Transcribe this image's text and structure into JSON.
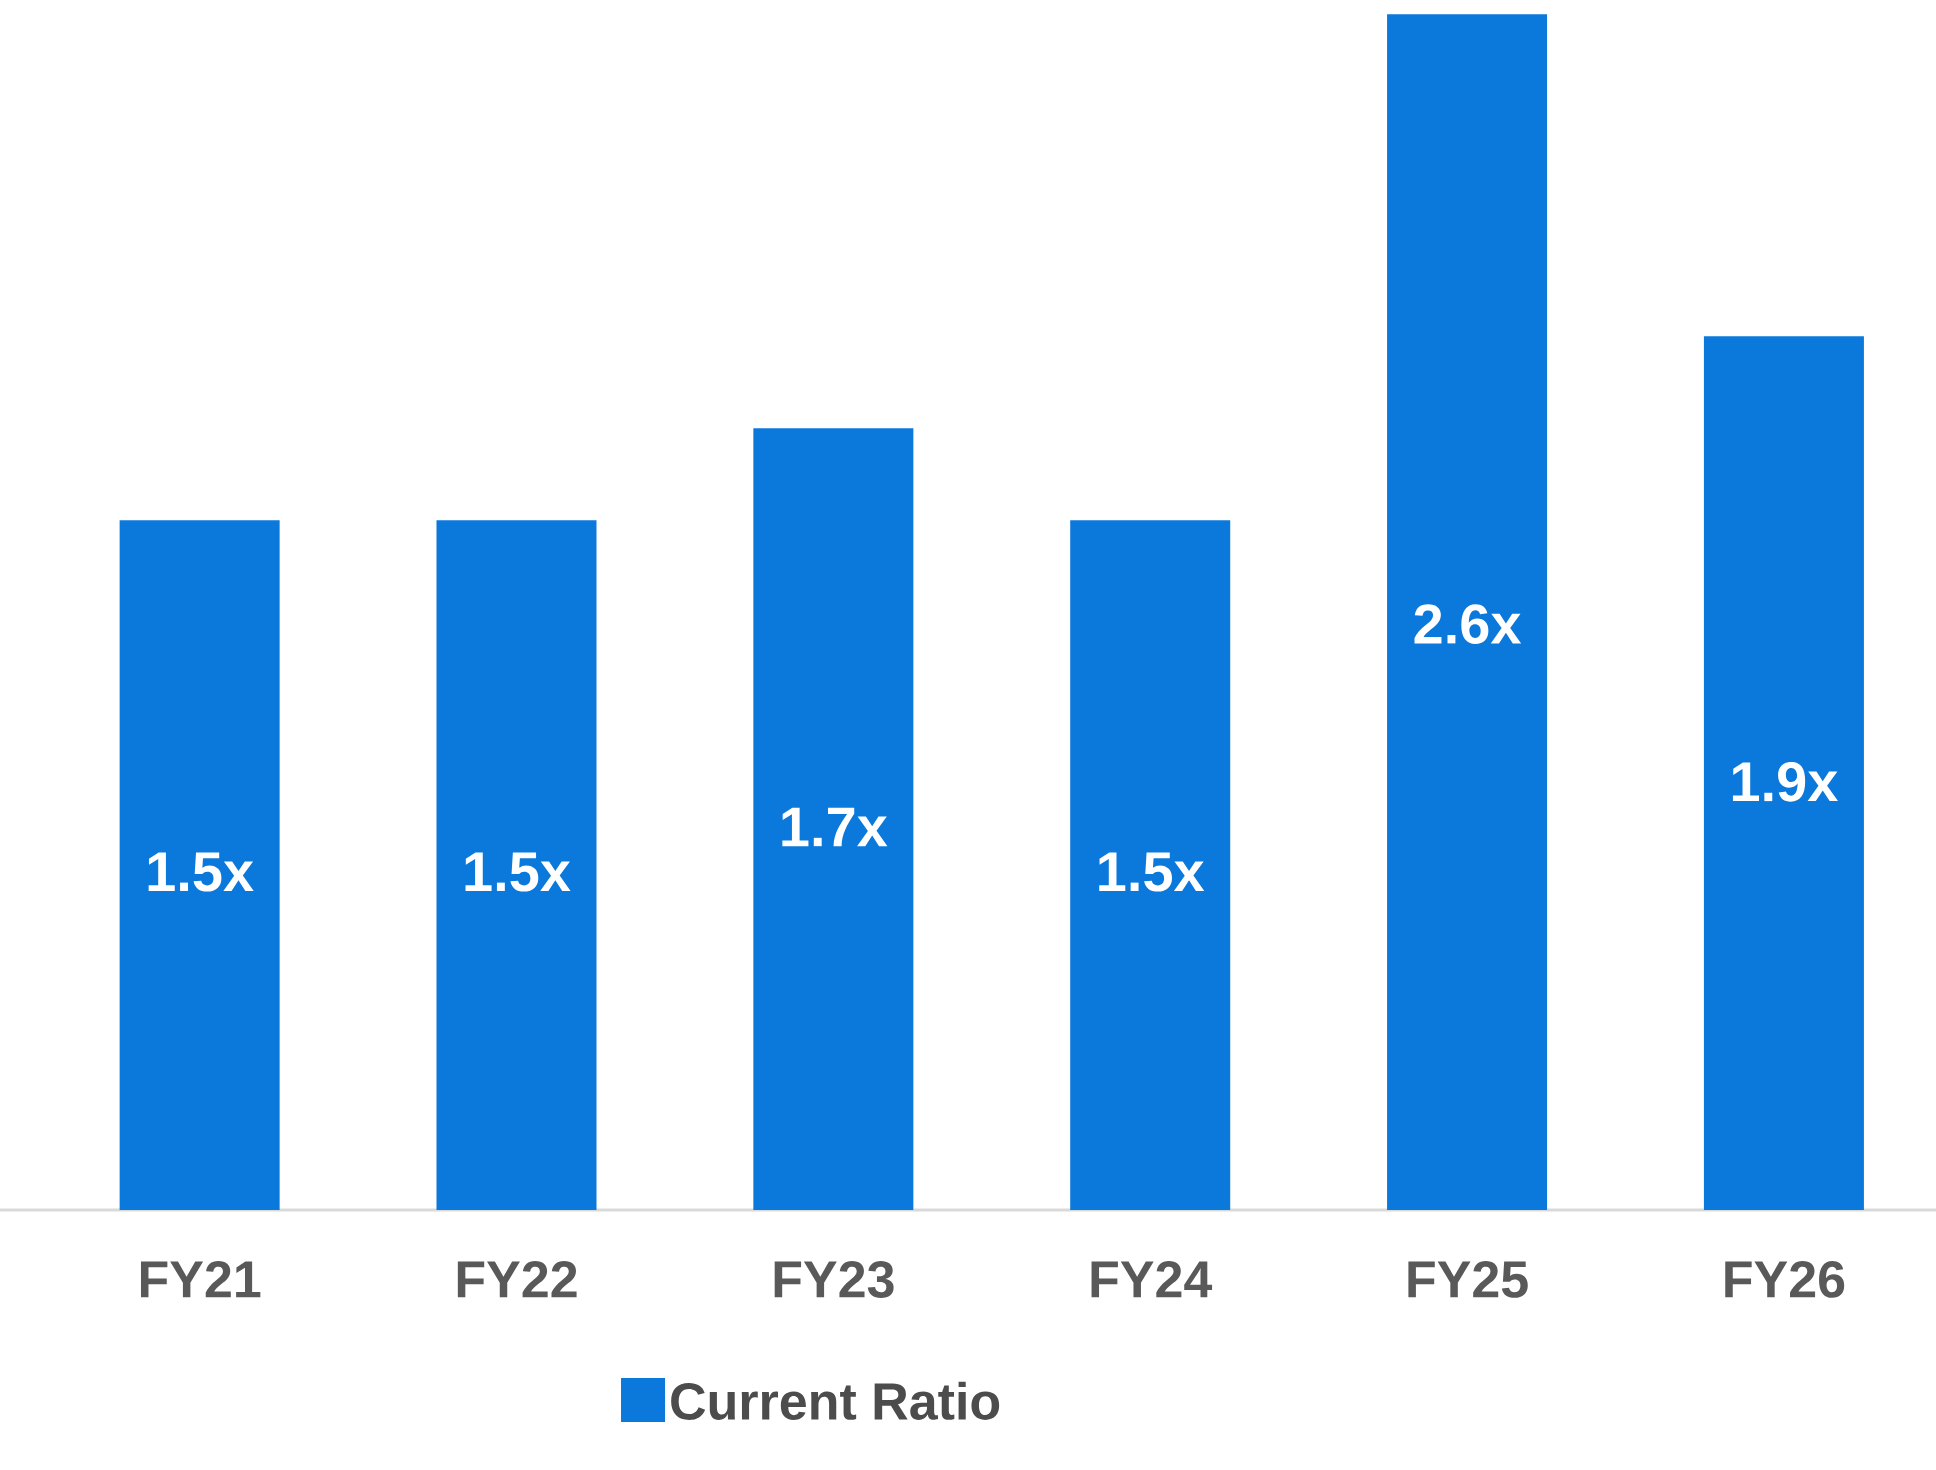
{
  "chart_data": {
    "type": "bar",
    "categories": [
      "FY21",
      "FY22",
      "FY23",
      "FY24",
      "FY25",
      "FY26"
    ],
    "series": [
      {
        "name": "Current Ratio",
        "color": "#0b78dc",
        "values": [
          1.5,
          1.5,
          1.7,
          1.5,
          2.6,
          1.9
        ],
        "value_labels": [
          "1.5x",
          "1.5x",
          "1.7x",
          "1.5x",
          "2.6x",
          "1.9x"
        ]
      }
    ],
    "legend": "bottom"
  }
}
